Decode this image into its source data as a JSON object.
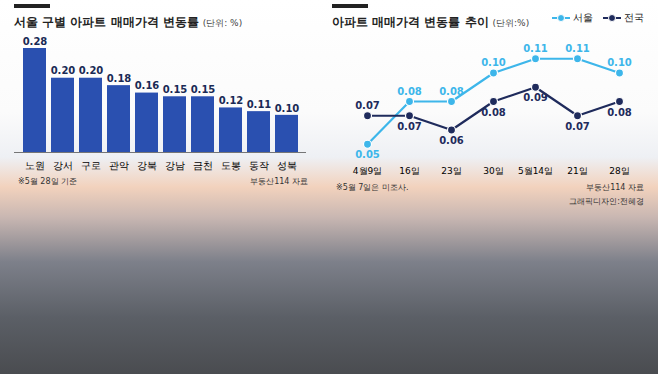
{
  "chart_data": [
    {
      "type": "bar",
      "title": "서울 구별 아파트 매매가격 변동률",
      "subtitle": "(단위: %)",
      "categories": [
        "노원",
        "강서",
        "구로",
        "관악",
        "강북",
        "강남",
        "금천",
        "도봉",
        "동작",
        "성북"
      ],
      "values": [
        0.28,
        0.2,
        0.2,
        0.18,
        0.16,
        0.15,
        0.15,
        0.12,
        0.11,
        0.1
      ],
      "value_labels": [
        "0.28",
        "0.20",
        "0.20",
        "0.18",
        "0.16",
        "0.15",
        "0.15",
        "0.12",
        "0.11",
        "0.10"
      ],
      "color": "#2a50b0",
      "ylim": [
        0,
        0.28
      ],
      "data_labels": true,
      "tick_labels": "x",
      "annotations": [
        "※5월 28일 기준",
        "부동산114 자료"
      ]
    },
    {
      "type": "line",
      "title": "아파트 매매가격 변동률 추이",
      "subtitle": "(단위:%)",
      "categories": [
        "4월9일",
        "16일",
        "23일",
        "30일",
        "5월14일",
        "21일",
        "28일"
      ],
      "series": [
        {
          "name": "서울",
          "color": "#3db6ea",
          "marker": "circle",
          "values": [
            0.05,
            0.08,
            0.08,
            0.1,
            0.11,
            0.11,
            0.1
          ],
          "value_labels": [
            "0.05",
            "0.08",
            "0.08",
            "0.10",
            "0.11",
            "0.11",
            "0.10"
          ]
        },
        {
          "name": "전국",
          "color": "#1f2b5c",
          "marker": "circle",
          "values": [
            0.07,
            0.07,
            0.06,
            0.08,
            0.09,
            0.07,
            0.08
          ],
          "value_labels": [
            "0.07",
            "0.07",
            "0.06",
            "0.08",
            "0.09",
            "0.07",
            "0.08"
          ]
        }
      ],
      "ylim": [
        0.04,
        0.12
      ],
      "data_labels": true,
      "tick_labels": "x",
      "legend": "top-right",
      "annotations": [
        "※5월 7일은 미조사.",
        "부동산114 자료",
        "그래픽디자인:전혜경"
      ]
    }
  ]
}
